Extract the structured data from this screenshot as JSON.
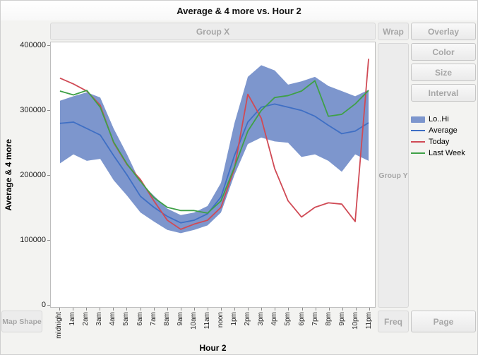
{
  "window": {
    "title": "Average & 4 more vs. Hour 2"
  },
  "drop_zones": {
    "group_x": "Group X",
    "wrap": "Wrap",
    "overlay": "Overlay",
    "color": "Color",
    "size": "Size",
    "interval": "Interval",
    "group_y": "Group Y",
    "freq": "Freq",
    "page": "Page",
    "map_shape": "Map Shape"
  },
  "legend": {
    "items": [
      {
        "label": "Lo..Hi",
        "type": "band",
        "color": "#7D96CD"
      },
      {
        "label": "Average",
        "type": "line",
        "color": "#3F6FC4"
      },
      {
        "label": "Today",
        "type": "line",
        "color": "#D04A55"
      },
      {
        "label": "Last Week",
        "type": "line",
        "color": "#3FA047"
      }
    ]
  },
  "chart_data": {
    "type": "line",
    "title": "Average & 4 more vs. Hour 2",
    "xlabel": "Hour 2",
    "ylabel": "Average & 4 more",
    "ylim": [
      0,
      400000
    ],
    "grid": false,
    "legend_position": "right",
    "yticks": [
      {
        "value": 400000,
        "label": "400000"
      },
      {
        "value": 300000,
        "label": "300000"
      },
      {
        "value": 200000,
        "label": "200000"
      },
      {
        "value": 100000,
        "label": "100000"
      },
      {
        "value": 0,
        "label": "0"
      }
    ],
    "categories": [
      "midnight",
      "1am",
      "2am",
      "3am",
      "4am",
      "5am",
      "6am",
      "7am",
      "8am",
      "9am",
      "10am",
      "11am",
      "noon",
      "1pm",
      "2pm",
      "3pm",
      "4pm",
      "5pm",
      "6pm",
      "7pm",
      "8pm",
      "9pm",
      "10pm",
      "11pm"
    ],
    "band": {
      "name": "Lo..Hi",
      "color": "#7D96CD",
      "hi": [
        315000,
        322000,
        328000,
        320000,
        272000,
        232000,
        188000,
        168000,
        148000,
        138000,
        142000,
        152000,
        188000,
        280000,
        352000,
        370000,
        362000,
        340000,
        345000,
        352000,
        338000,
        330000,
        322000,
        332000
      ],
      "lo": [
        218000,
        232000,
        222000,
        225000,
        192000,
        168000,
        142000,
        128000,
        115000,
        110000,
        115000,
        122000,
        142000,
        200000,
        248000,
        258000,
        252000,
        250000,
        228000,
        232000,
        222000,
        205000,
        232000,
        222000
      ]
    },
    "series": [
      {
        "name": "Average",
        "color": "#3F6FC4",
        "values": [
          280000,
          282000,
          272000,
          262000,
          230000,
          200000,
          167000,
          150000,
          136000,
          126000,
          130000,
          140000,
          166000,
          230000,
          282000,
          305000,
          310000,
          305000,
          300000,
          291000,
          277000,
          264000,
          268000,
          281000
        ]
      },
      {
        "name": "Today",
        "color": "#D04A55",
        "values": [
          350000,
          341000,
          330000,
          308000,
          250000,
          216000,
          193000,
          160000,
          130000,
          116000,
          124000,
          130000,
          150000,
          210000,
          325000,
          288000,
          210000,
          160000,
          135000,
          150000,
          157000,
          155000,
          128000,
          380000
        ]
      },
      {
        "name": "Last Week",
        "color": "#3FA047",
        "values": [
          330000,
          324000,
          331000,
          305000,
          251000,
          217000,
          190000,
          165000,
          150000,
          145000,
          145000,
          141000,
          160000,
          212000,
          268000,
          300000,
          320000,
          323000,
          330000,
          346000,
          291000,
          294000,
          310000,
          331000
        ]
      }
    ]
  }
}
